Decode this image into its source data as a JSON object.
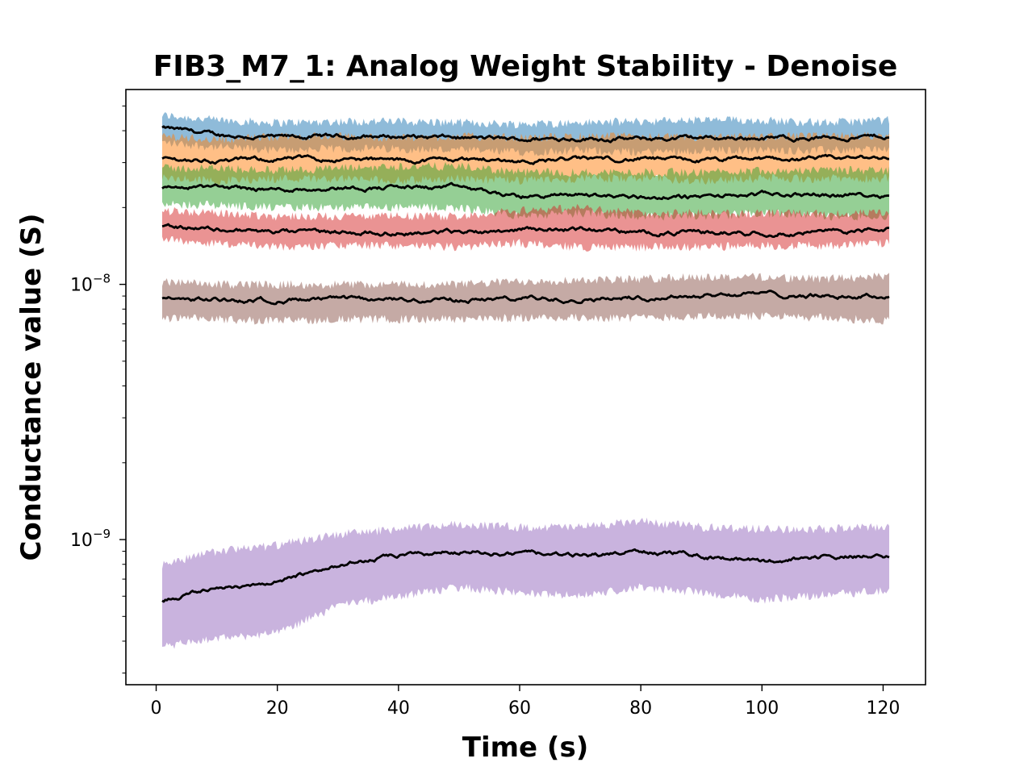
{
  "chart_data": {
    "type": "area",
    "title": "FIB3_M7_1: Analog Weight Stability - Denoise",
    "xlabel": "Time (s)",
    "ylabel": "Conductance value (S)",
    "xlim": [
      -5,
      127
    ],
    "ylim": [
      2.7e-10,
      5.8e-08
    ],
    "yscale": "log",
    "x_ticks": [
      0,
      20,
      40,
      60,
      80,
      100,
      120
    ],
    "y_ticks": [
      {
        "value": 1e-09,
        "base": "10",
        "exponent": "−9"
      },
      {
        "value": 1e-08,
        "base": "10",
        "exponent": "−8"
      }
    ],
    "grid": false,
    "legend": "none",
    "mean_line_color": "#000000",
    "x": [
      1,
      10,
      20,
      30,
      40,
      50,
      60,
      70,
      80,
      90,
      100,
      110,
      121
    ],
    "series": [
      {
        "color": "#1f77b4",
        "mean": [
          4.1e-08,
          3.85e-08,
          3.75e-08,
          3.8e-08,
          3.8e-08,
          3.75e-08,
          3.7e-08,
          3.75e-08,
          3.7e-08,
          3.75e-08,
          3.75e-08,
          3.75e-08,
          3.8e-08
        ],
        "lower": [
          3.6e-08,
          3.45e-08,
          3.35e-08,
          3.4e-08,
          3.4e-08,
          3.35e-08,
          3.3e-08,
          3.35e-08,
          3.3e-08,
          3.35e-08,
          3.35e-08,
          3.35e-08,
          3.4e-08
        ],
        "upper": [
          4.6e-08,
          4.4e-08,
          4.3e-08,
          4.35e-08,
          4.35e-08,
          4.3e-08,
          4.25e-08,
          4.3e-08,
          4.35e-08,
          4.4e-08,
          4.4e-08,
          4.3e-08,
          4.4e-08
        ]
      },
      {
        "color": "#ff7f0e",
        "mean": [
          3.1e-08,
          3.05e-08,
          3.1e-08,
          3.1e-08,
          3.05e-08,
          3.1e-08,
          3.05e-08,
          3.1e-08,
          3.1e-08,
          3.05e-08,
          3.1e-08,
          3.1e-08,
          3.15e-08
        ],
        "lower": [
          2.6e-08,
          2.55e-08,
          2.6e-08,
          2.6e-08,
          2.55e-08,
          2.6e-08,
          2.55e-08,
          2.6e-08,
          2.6e-08,
          2.55e-08,
          2.6e-08,
          2.6e-08,
          2.6e-08
        ],
        "upper": [
          3.8e-08,
          3.7e-08,
          3.8e-08,
          3.8e-08,
          3.75e-08,
          3.8e-08,
          3.75e-08,
          3.8e-08,
          3.8e-08,
          3.75e-08,
          3.8e-08,
          3.8e-08,
          3.85e-08
        ]
      },
      {
        "color": "#2ca02c",
        "mean": [
          2.4e-08,
          2.4e-08,
          2.35e-08,
          2.4e-08,
          2.4e-08,
          2.4e-08,
          2.2e-08,
          2.25e-08,
          2.2e-08,
          2.2e-08,
          2.25e-08,
          2.25e-08,
          2.25e-08
        ],
        "lower": [
          2.05e-08,
          2.05e-08,
          2e-08,
          2e-08,
          2e-08,
          2e-08,
          1.85e-08,
          1.9e-08,
          1.85e-08,
          1.85e-08,
          1.9e-08,
          1.85e-08,
          1.85e-08
        ],
        "upper": [
          2.85e-08,
          2.85e-08,
          2.8e-08,
          2.85e-08,
          2.9e-08,
          2.9e-08,
          2.75e-08,
          2.75e-08,
          2.75e-08,
          2.75e-08,
          2.8e-08,
          2.8e-08,
          2.8e-08
        ]
      },
      {
        "color": "#d62728",
        "mean": [
          1.7e-08,
          1.65e-08,
          1.6e-08,
          1.6e-08,
          1.6e-08,
          1.6e-08,
          1.65e-08,
          1.65e-08,
          1.6e-08,
          1.6e-08,
          1.6e-08,
          1.6e-08,
          1.65e-08
        ],
        "lower": [
          1.5e-08,
          1.45e-08,
          1.4e-08,
          1.42e-08,
          1.42e-08,
          1.4e-08,
          1.45e-08,
          1.4e-08,
          1.4e-08,
          1.4e-08,
          1.42e-08,
          1.42e-08,
          1.45e-08
        ],
        "upper": [
          1.95e-08,
          1.9e-08,
          1.85e-08,
          1.85e-08,
          1.85e-08,
          1.85e-08,
          1.95e-08,
          2e-08,
          1.9e-08,
          1.9e-08,
          1.9e-08,
          1.9e-08,
          1.9e-08
        ]
      },
      {
        "color": "#8c564b",
        "mean": [
          8.8e-09,
          8.7e-09,
          8.7e-09,
          8.7e-09,
          8.7e-09,
          8.7e-09,
          8.8e-09,
          8.8e-09,
          8.9e-09,
          9.1e-09,
          9.2e-09,
          9e-09,
          9e-09
        ],
        "lower": [
          7.4e-09,
          7.3e-09,
          7.2e-09,
          7.3e-09,
          7.3e-09,
          7.3e-09,
          7.4e-09,
          7.4e-09,
          7.4e-09,
          7.5e-09,
          7.5e-09,
          7.4e-09,
          7.2e-09
        ],
        "upper": [
          1.02e-08,
          1e-08,
          1e-08,
          1e-08,
          1e-08,
          1e-08,
          1.03e-08,
          1.04e-08,
          1.05e-08,
          1.07e-08,
          1.07e-08,
          1.05e-08,
          1.08e-08
        ]
      },
      {
        "color": "#9467bd",
        "mean": [
          5.8e-10,
          6.5e-10,
          6.8e-10,
          8e-10,
          8.6e-10,
          9e-10,
          8.8e-10,
          8.6e-10,
          9e-10,
          8.7e-10,
          8.2e-10,
          8.6e-10,
          8.6e-10
        ],
        "lower": [
          3.8e-10,
          4.1e-10,
          4.3e-10,
          5.5e-10,
          6e-10,
          6.5e-10,
          6.2e-10,
          6e-10,
          6.5e-10,
          6.2e-10,
          5.8e-10,
          6.1e-10,
          6.3e-10
        ],
        "upper": [
          8e-10,
          9e-10,
          9.5e-10,
          1.05e-09,
          1.1e-09,
          1.15e-09,
          1.12e-09,
          1.12e-09,
          1.18e-09,
          1.12e-09,
          1.1e-09,
          1.1e-09,
          1.12e-09
        ]
      }
    ]
  }
}
